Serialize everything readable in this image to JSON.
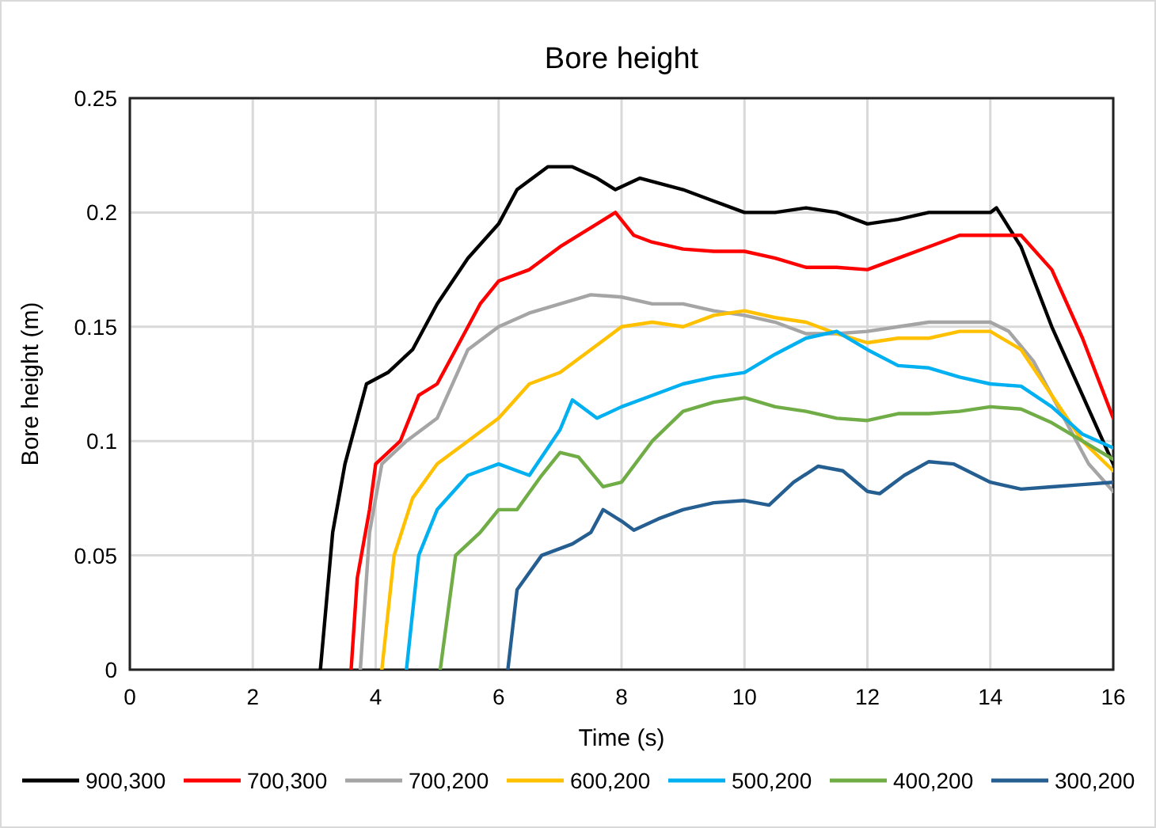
{
  "chart_data": {
    "type": "line",
    "title": "Bore height",
    "xlabel": "Time (s)",
    "ylabel": "Bore height (m)",
    "xlim": [
      0,
      16
    ],
    "xticks": [
      0,
      2,
      4,
      6,
      8,
      10,
      12,
      14,
      16
    ],
    "ylim": [
      0,
      0.25
    ],
    "yticks": [
      0,
      0.05,
      0.1,
      0.15,
      0.2,
      0.25
    ],
    "grid": true,
    "legend": "bottom",
    "marker": "none",
    "line_style": "solid",
    "series": [
      {
        "name": "900,300",
        "color": "#000000",
        "x": [
          3.1,
          3.3,
          3.5,
          3.7,
          3.85,
          4.2,
          4.6,
          5.0,
          5.5,
          6,
          6.3,
          6.8,
          7.2,
          7.6,
          7.9,
          8.3,
          9,
          9.5,
          10,
          10.5,
          11,
          11.5,
          12,
          12.5,
          13,
          13.5,
          14,
          14.1,
          14.5,
          15,
          15.5,
          16
        ],
        "values": [
          0,
          0.06,
          0.09,
          0.11,
          0.125,
          0.13,
          0.14,
          0.16,
          0.18,
          0.195,
          0.21,
          0.22,
          0.22,
          0.215,
          0.21,
          0.215,
          0.21,
          0.205,
          0.2,
          0.2,
          0.202,
          0.2,
          0.195,
          0.197,
          0.2,
          0.2,
          0.2,
          0.202,
          0.185,
          0.15,
          0.12,
          0.09
        ]
      },
      {
        "name": "700,300",
        "color": "#ff0000",
        "x": [
          3.6,
          3.7,
          3.9,
          4.0,
          4.4,
          4.7,
          5.0,
          5.3,
          5.7,
          6,
          6.5,
          7,
          7.6,
          7.9,
          8.2,
          8.5,
          9,
          9.5,
          10,
          10.5,
          11,
          11.5,
          12,
          12.5,
          13,
          13.5,
          14,
          14.5,
          15,
          15.5,
          16
        ],
        "values": [
          0,
          0.04,
          0.07,
          0.09,
          0.1,
          0.12,
          0.125,
          0.14,
          0.16,
          0.17,
          0.175,
          0.185,
          0.195,
          0.2,
          0.19,
          0.187,
          0.184,
          0.183,
          0.183,
          0.18,
          0.176,
          0.176,
          0.175,
          0.18,
          0.185,
          0.19,
          0.19,
          0.19,
          0.175,
          0.145,
          0.11
        ]
      },
      {
        "name": "700,200",
        "color": "#a5a5a5",
        "x": [
          3.75,
          3.9,
          4.1,
          4.5,
          5,
          5.5,
          6,
          6.5,
          7,
          7.5,
          8,
          8.5,
          9,
          9.5,
          10,
          10.5,
          11,
          11.5,
          12,
          12.5,
          13,
          13.5,
          14,
          14.3,
          14.7,
          15.2,
          15.6,
          16
        ],
        "values": [
          0,
          0.06,
          0.09,
          0.1,
          0.11,
          0.14,
          0.15,
          0.156,
          0.16,
          0.164,
          0.163,
          0.16,
          0.16,
          0.157,
          0.155,
          0.152,
          0.147,
          0.147,
          0.148,
          0.15,
          0.152,
          0.152,
          0.152,
          0.148,
          0.135,
          0.11,
          0.09,
          0.078
        ]
      },
      {
        "name": "600,200",
        "color": "#ffc000",
        "x": [
          4.1,
          4.3,
          4.6,
          5,
          5.5,
          6,
          6.5,
          7,
          7.5,
          8,
          8.5,
          9,
          9.5,
          10,
          10.5,
          11,
          11.5,
          12,
          12.5,
          13,
          13.5,
          14,
          14.5,
          15,
          15.5,
          16
        ],
        "values": [
          0,
          0.05,
          0.075,
          0.09,
          0.1,
          0.11,
          0.125,
          0.13,
          0.14,
          0.15,
          0.152,
          0.15,
          0.155,
          0.157,
          0.154,
          0.152,
          0.147,
          0.143,
          0.145,
          0.145,
          0.148,
          0.148,
          0.14,
          0.12,
          0.1,
          0.087
        ]
      },
      {
        "name": "500,200",
        "color": "#00b0f0",
        "x": [
          4.5,
          4.7,
          5,
          5.5,
          6,
          6.5,
          7,
          7.2,
          7.6,
          8,
          8.5,
          9,
          9.5,
          10,
          10.5,
          11,
          11.5,
          12,
          12.5,
          13,
          13.5,
          14,
          14.5,
          15,
          15.5,
          16
        ],
        "values": [
          0,
          0.05,
          0.07,
          0.085,
          0.09,
          0.085,
          0.105,
          0.118,
          0.11,
          0.115,
          0.12,
          0.125,
          0.128,
          0.13,
          0.138,
          0.145,
          0.148,
          0.14,
          0.133,
          0.132,
          0.128,
          0.125,
          0.124,
          0.115,
          0.103,
          0.097
        ]
      },
      {
        "name": "400,200",
        "color": "#70ad47",
        "x": [
          5.05,
          5.3,
          5.7,
          6,
          6.3,
          6.7,
          7,
          7.3,
          7.7,
          8,
          8.5,
          9,
          9.5,
          10,
          10.5,
          11,
          11.5,
          12,
          12.5,
          13,
          13.5,
          14,
          14.5,
          15,
          15.5,
          16
        ],
        "values": [
          0,
          0.05,
          0.06,
          0.07,
          0.07,
          0.085,
          0.095,
          0.093,
          0.08,
          0.082,
          0.1,
          0.113,
          0.117,
          0.119,
          0.115,
          0.113,
          0.11,
          0.109,
          0.112,
          0.112,
          0.113,
          0.115,
          0.114,
          0.108,
          0.1,
          0.092
        ]
      },
      {
        "name": "300,200",
        "color": "#255e91",
        "x": [
          6.15,
          6.3,
          6.7,
          7.2,
          7.5,
          7.7,
          8,
          8.2,
          8.6,
          9,
          9.5,
          10,
          10.4,
          10.8,
          11.2,
          11.6,
          12,
          12.2,
          12.6,
          13,
          13.4,
          14,
          14.5,
          15,
          15.5,
          16
        ],
        "values": [
          0,
          0.035,
          0.05,
          0.055,
          0.06,
          0.07,
          0.065,
          0.061,
          0.066,
          0.07,
          0.073,
          0.074,
          0.072,
          0.082,
          0.089,
          0.087,
          0.078,
          0.077,
          0.085,
          0.091,
          0.09,
          0.082,
          0.079,
          0.08,
          0.081,
          0.082
        ]
      }
    ]
  }
}
